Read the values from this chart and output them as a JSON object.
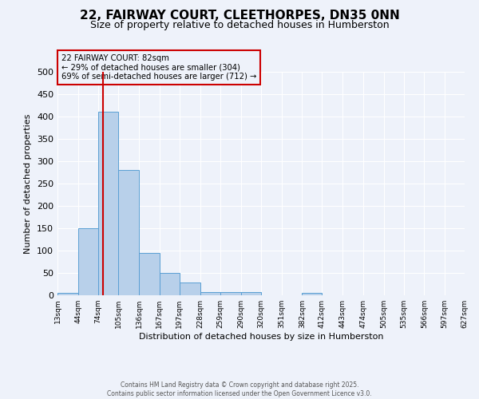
{
  "title1": "22, FAIRWAY COURT, CLEETHORPES, DN35 0NN",
  "title2": "Size of property relative to detached houses in Humberston",
  "xlabel": "Distribution of detached houses by size in Humberston",
  "ylabel": "Number of detached properties",
  "bin_labels": [
    "13sqm",
    "44sqm",
    "74sqm",
    "105sqm",
    "136sqm",
    "167sqm",
    "197sqm",
    "228sqm",
    "259sqm",
    "290sqm",
    "320sqm",
    "351sqm",
    "382sqm",
    "412sqm",
    "443sqm",
    "474sqm",
    "505sqm",
    "535sqm",
    "566sqm",
    "597sqm",
    "627sqm"
  ],
  "bin_edges": [
    13,
    44,
    74,
    105,
    136,
    167,
    197,
    228,
    259,
    290,
    320,
    351,
    382,
    412,
    443,
    474,
    505,
    535,
    566,
    597,
    627
  ],
  "bar_heights": [
    5,
    150,
    410,
    280,
    95,
    50,
    28,
    8,
    8,
    8,
    0,
    0,
    5,
    0,
    0,
    0,
    0,
    0,
    0,
    0
  ],
  "bar_color": "#b8d0ea",
  "bar_edge_color": "#5a9fd4",
  "property_size": 82,
  "vline_color": "#cc0000",
  "annotation_line1": "22 FAIRWAY COURT: 82sqm",
  "annotation_line2": "← 29% of detached houses are smaller (304)",
  "annotation_line3": "69% of semi-detached houses are larger (712) →",
  "annotation_box_color": "#cc0000",
  "ylim": [
    0,
    500
  ],
  "yticks": [
    0,
    50,
    100,
    150,
    200,
    250,
    300,
    350,
    400,
    450,
    500
  ],
  "footer1": "Contains HM Land Registry data © Crown copyright and database right 2025.",
  "footer2": "Contains public sector information licensed under the Open Government Licence v3.0.",
  "bg_color": "#eef2fa",
  "grid_color": "#ffffff",
  "title1_fontsize": 11,
  "title2_fontsize": 9
}
